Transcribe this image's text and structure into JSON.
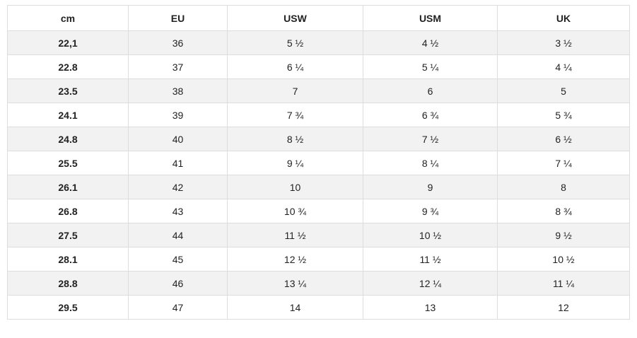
{
  "table": {
    "headers": [
      "cm",
      "EU",
      "USW",
      "USM",
      "UK"
    ],
    "rows": [
      [
        "22,1",
        "36",
        "5 ½",
        "4 ½",
        "3 ½"
      ],
      [
        "22.8",
        "37",
        "6 ¼",
        "5 ¼",
        "4 ¼"
      ],
      [
        "23.5",
        "38",
        "7",
        "6",
        "5"
      ],
      [
        "24.1",
        "39",
        "7 ¾",
        "6 ¾",
        "5 ¾"
      ],
      [
        "24.8",
        "40",
        "8 ½",
        "7 ½",
        "6 ½"
      ],
      [
        "25.5",
        "41",
        "9 ¼",
        "8 ¼",
        "7 ¼"
      ],
      [
        "26.1",
        "42",
        "10",
        "9",
        "8"
      ],
      [
        "26.8",
        "43",
        "10 ¾",
        "9 ¾",
        "8 ¾"
      ],
      [
        "27.5",
        "44",
        "11 ½",
        "10 ½",
        "9 ½"
      ],
      [
        "28.1",
        "45",
        "12 ½",
        "11 ½",
        "10 ½"
      ],
      [
        "28.8",
        "46",
        "13 ¼",
        "12 ¼",
        "11 ¼"
      ],
      [
        "29.5",
        "47",
        "14",
        "13",
        "12"
      ]
    ]
  },
  "colors": {
    "border": "#dddddd",
    "stripe": "#f2f2f2",
    "text": "#222222"
  }
}
